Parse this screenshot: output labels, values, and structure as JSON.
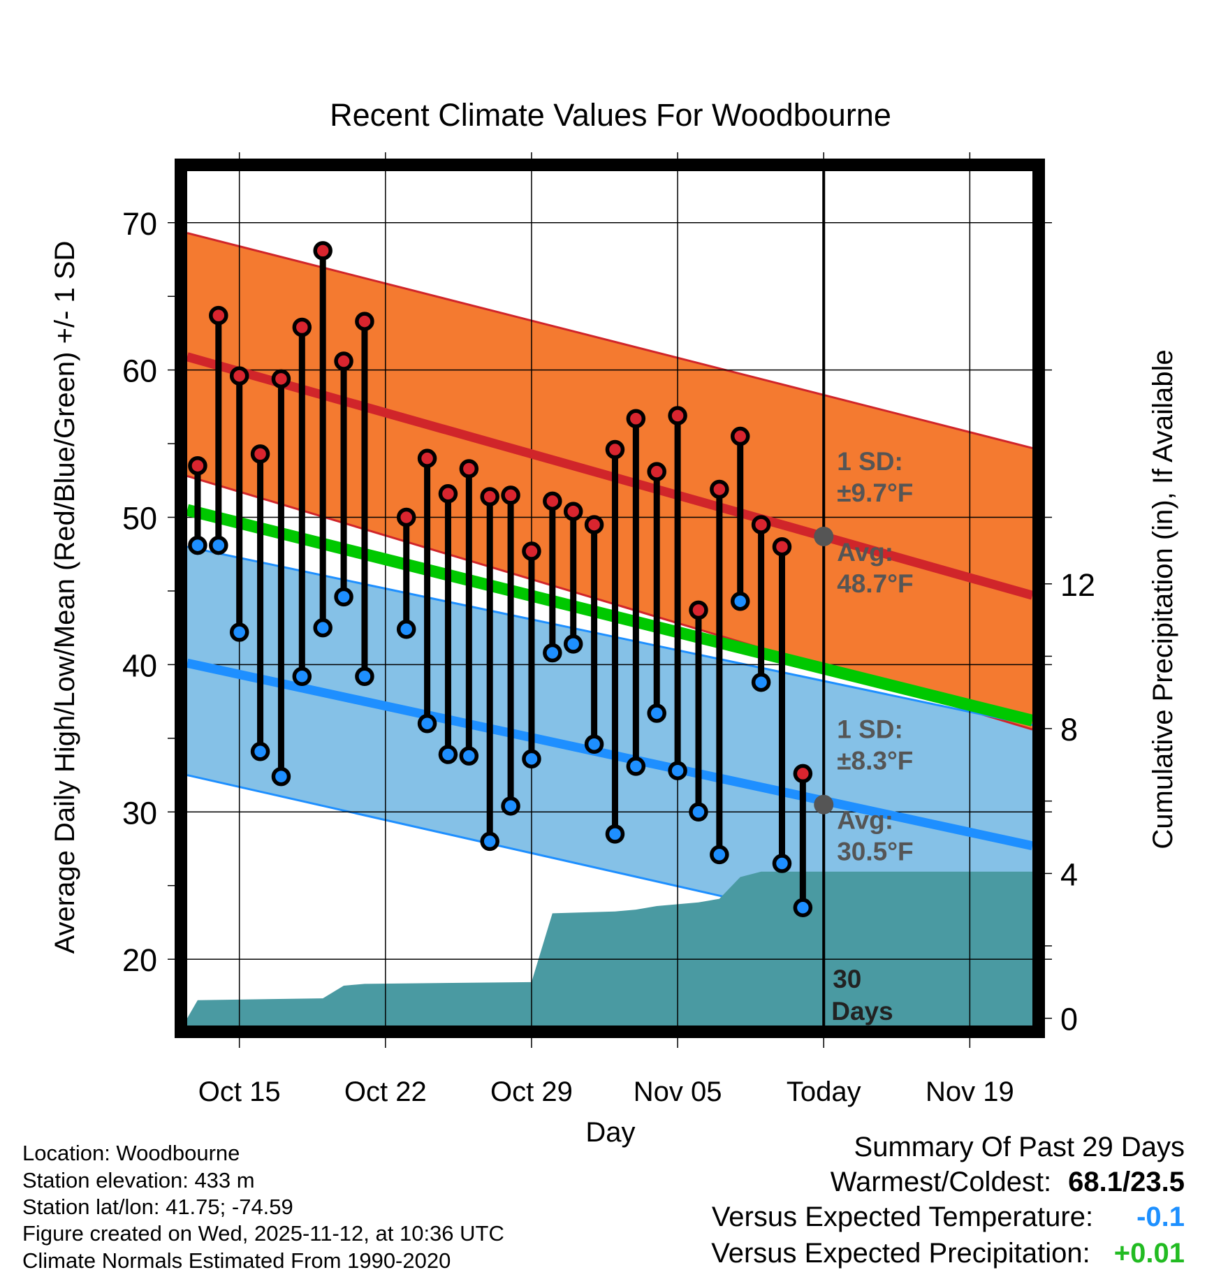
{
  "chart_data": {
    "type": "range-bar",
    "title": "Recent Climate Values For Woodbourne",
    "xlabel": "Day",
    "ylabel_left": "Average Daily High/Low/Mean (Red/Blue/Green) +/- 1 SD",
    "ylabel_right": "Cumulative Precipitation (in), If Available",
    "x_tick_labels": [
      "Oct 15",
      "Oct 22",
      "Oct 29",
      "Nov 05",
      "Today",
      "Nov 19"
    ],
    "x_tick_days": [
      3,
      10,
      17,
      24,
      31,
      38
    ],
    "x_range_days": [
      0.5,
      41
    ],
    "y_left_ticks": [
      20,
      30,
      40,
      50,
      60,
      70
    ],
    "y_left_range": [
      15.5,
      73.5
    ],
    "y_right_ticks": [
      0,
      4,
      8,
      12
    ],
    "y_right_range": [
      -0.2,
      23.4
    ],
    "days": [
      1,
      2,
      3,
      4,
      5,
      6,
      7,
      8,
      9,
      10,
      11,
      12,
      13,
      14,
      15,
      16,
      17,
      18,
      19,
      20,
      21,
      22,
      23,
      24,
      25,
      26,
      27,
      28,
      29,
      30
    ],
    "daily_high": [
      53.5,
      63.7,
      59.6,
      54.3,
      59.4,
      62.9,
      68.1,
      60.6,
      63.3,
      null,
      50.0,
      54.0,
      51.6,
      53.3,
      51.4,
      51.5,
      47.7,
      51.1,
      50.4,
      49.5,
      54.6,
      56.7,
      53.1,
      56.9,
      43.7,
      51.9,
      55.5,
      49.5,
      48.0,
      32.6
    ],
    "daily_low": [
      48.1,
      48.1,
      42.2,
      34.1,
      32.4,
      39.2,
      42.5,
      44.6,
      39.2,
      null,
      42.4,
      36.0,
      33.9,
      33.8,
      28.0,
      30.4,
      33.6,
      40.8,
      41.4,
      34.6,
      28.5,
      33.1,
      36.7,
      32.8,
      30.0,
      27.1,
      44.3,
      38.8,
      26.5,
      23.5
    ],
    "normal_high": {
      "start": 60.9,
      "end": 44.7
    },
    "normal_high_sd_band": {
      "upper_start": 69.3,
      "upper_end": 54.7,
      "lower_start": 52.8,
      "lower_end": 35.6
    },
    "normal_low": {
      "start": 40.1,
      "end": 27.7
    },
    "normal_low_sd_band": {
      "upper_start": 48.0,
      "upper_end": 35.9,
      "lower_start": 32.5,
      "lower_end": 19.5
    },
    "normal_mean": {
      "start": 50.5,
      "end": 36.2
    },
    "cumulative_precip_days": [
      0.5,
      1,
      7,
      8,
      9,
      17,
      18,
      21,
      22,
      23,
      24,
      25,
      26,
      27,
      28,
      41
    ],
    "cumulative_precip": [
      0,
      0.5,
      0.55,
      0.9,
      0.95,
      1.0,
      2.9,
      2.95,
      3.0,
      3.1,
      3.15,
      3.2,
      3.3,
      3.9,
      4.05,
      4.05
    ],
    "today_day": 31,
    "annotations": {
      "high_sd_label": "1 SD:",
      "high_sd_value": "±9.7°F",
      "high_avg_label": "Avg:",
      "high_avg_value": "48.7°F",
      "low_sd_label": "1 SD:",
      "low_sd_value": "±8.3°F",
      "low_avg_label": "Avg:",
      "low_avg_value": "30.5°F",
      "days_count": "30",
      "days_label": "Days"
    },
    "marker_today_high": 48.7,
    "marker_today_low": 30.5
  },
  "colors": {
    "high_band": "#f47a30",
    "high_line": "#d0252a",
    "low_band": "#85c1e7",
    "low_line": "#1e8fff",
    "mean_line": "#00c800",
    "precip": "#4a9aa2",
    "high_dot": "#d9252f",
    "low_dot": "#1e8fff",
    "annotation": "#555555",
    "summary_temp": "#1e90ff",
    "summary_precip": "#22bb22"
  },
  "footer": {
    "location": "Location: Woodbourne",
    "elevation": "Station elevation: 433 m",
    "latlon": "Station lat/lon: 41.75; -74.59",
    "created": "Figure created on Wed, 2025-11-12, at 10:36 UTC",
    "normals": "Climate Normals Estimated From 1990-2020"
  },
  "summary": {
    "title": "Summary Of Past 29 Days",
    "warmest_coldest_label": "Warmest/Coldest:",
    "warmest_coldest_value": "68.1/23.5",
    "temp_label": "Versus Expected Temperature:",
    "temp_value": "-0.1",
    "precip_label": "Versus Expected Precipitation:",
    "precip_value": "+0.01"
  }
}
